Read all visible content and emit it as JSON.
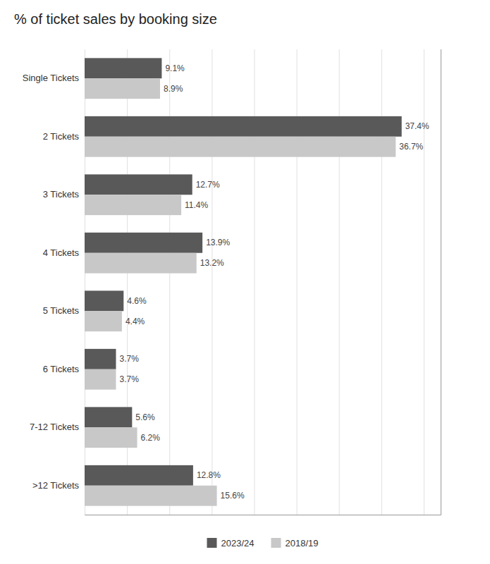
{
  "chart_data": {
    "type": "bar",
    "orientation": "horizontal",
    "title": "% of ticket sales by booking size",
    "categories": [
      "Single Tickets",
      "2 Tickets",
      "3 Tickets",
      "4 Tickets",
      "5 Tickets",
      "6 Tickets",
      "7-12 Tickets",
      ">12 Tickets"
    ],
    "series": [
      {
        "name": "2023/24",
        "color": "#595959",
        "values": [
          9.1,
          37.4,
          12.7,
          13.9,
          4.6,
          3.7,
          5.6,
          12.8
        ],
        "value_labels": [
          "9.1%",
          "37.4%",
          "12.7%",
          "13.9%",
          "4.6%",
          "3.7%",
          "5.6%",
          "12.8%"
        ]
      },
      {
        "name": "2018/19",
        "color": "#c8c8c8",
        "values": [
          8.9,
          36.7,
          11.4,
          13.2,
          4.4,
          3.7,
          6.2,
          15.6
        ],
        "value_labels": [
          "8.9%",
          "36.7%",
          "11.4%",
          "13.2%",
          "4.4%",
          "3.7%",
          "6.2%",
          "15.6%"
        ]
      }
    ],
    "xlim": [
      0,
      42
    ],
    "xticks": [
      0,
      5,
      10,
      15,
      20,
      25,
      30,
      35,
      40
    ],
    "grid": true,
    "data_labels": true,
    "tick_labels": "y",
    "legend": "bottom"
  }
}
